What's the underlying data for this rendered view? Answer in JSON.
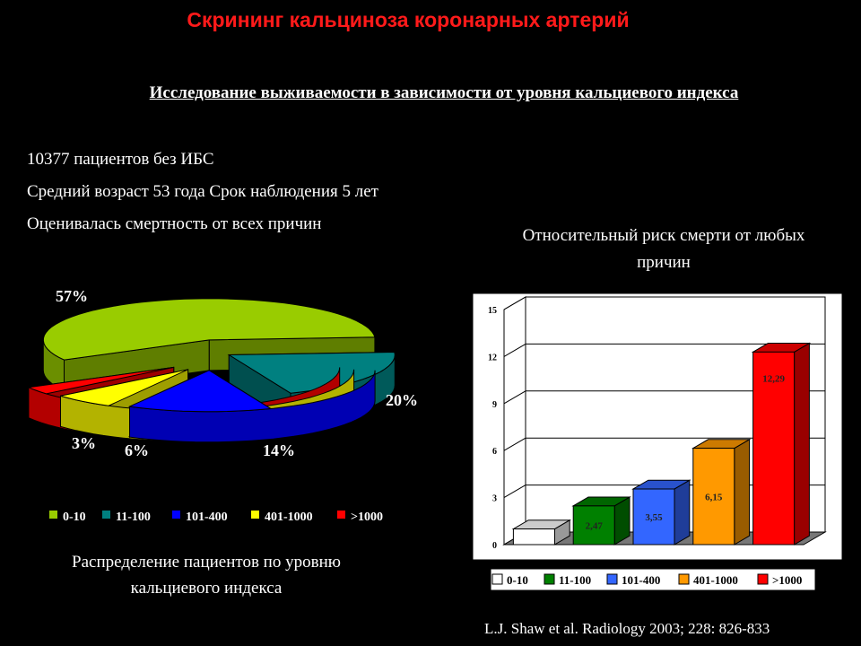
{
  "title": "Скрининг кальциноза коронарных артерий",
  "subtitle": "Исследование выживаемости в зависимости от уровня кальциевого индекса",
  "facts": [
    "10377 пациентов без ИБС",
    "Средний возраст 53 года Срок наблюдения 5 лет",
    "Оценивалась смертность от всех причин"
  ],
  "pie_caption": "Распределение пациентов по уровню кальциевого индекса",
  "bar_title": "Относительный риск смерти от любых причин",
  "citation": "L.J. Shaw et al. Radiology 2003; 228: 826-833",
  "colors": {
    "green_pie": "#99cc00",
    "teal": "#008080",
    "blue": "#0000ff",
    "yellow": "#ffff00",
    "red": "#ff0000",
    "bar_white": "#ffffff",
    "bar_green": "#008000",
    "bar_blue": "#3366ff",
    "bar_orange": "#ff9900",
    "bar_red": "#ff0000"
  },
  "chart_data": [
    {
      "type": "pie",
      "categories": [
        "0-10",
        "11-100",
        "101-400",
        "401-1000",
        ">1000"
      ],
      "values": [
        57,
        20,
        14,
        6,
        3
      ],
      "value_labels": [
        "57%",
        "20%",
        "14%",
        "6%",
        "3%"
      ],
      "legend_position": "bottom",
      "three_d": true
    },
    {
      "type": "bar",
      "categories": [
        "0-10",
        "11-100",
        "101-400",
        "401-1000",
        ">1000"
      ],
      "values": [
        1,
        2.47,
        3.55,
        6.15,
        12.29
      ],
      "value_labels": [
        "",
        "2,47",
        "3,55",
        "6,15",
        "12,29"
      ],
      "ylim": [
        0,
        15
      ],
      "yticks": [
        "0",
        "3",
        "6",
        "9",
        "12",
        "15"
      ],
      "grid": true,
      "legend_position": "bottom",
      "three_d": true
    }
  ]
}
